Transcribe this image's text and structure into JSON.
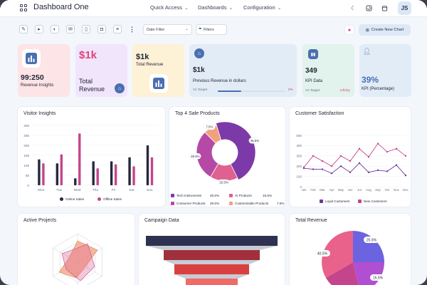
{
  "header": {
    "title": "Dashboard One",
    "nav": [
      {
        "label": "Quick Access"
      },
      {
        "label": "Dashboards"
      },
      {
        "label": "Configuration"
      }
    ],
    "avatar_initials": "JS"
  },
  "toolbar": {
    "date_filter_placeholder": "Date Filter",
    "filters_label": "Filters",
    "create_chart_label": "Create New Chart"
  },
  "kpis": [
    {
      "value": "99:250",
      "label": "Revenue Insights",
      "bg": "#fde4e6"
    },
    {
      "value": "$1k",
      "label": "Total Revenue",
      "bg": "#f1e5fb",
      "accent": "#e0437d"
    },
    {
      "value": "$1k",
      "label": "Total Revenue",
      "bg": "#fdf1d6"
    },
    {
      "value": "$1k",
      "label": "Previous Revenue in dollars",
      "sub": "Vs Target",
      "pct": "0%",
      "progress": 0.35,
      "bg": "#e2ecf7"
    },
    {
      "value": "349",
      "label": "KPI Data",
      "sub": "Vs Target",
      "pct": "Infinity",
      "bg": "#e2f2ec"
    },
    {
      "value": "39%",
      "label": "KPI (Percentage)",
      "bg": "#e2ecf7",
      "accent": "#4a6fb1"
    }
  ],
  "visitor": {
    "title": "Visitor Insights",
    "legend": [
      "Online Sales",
      "Offline Sales"
    ]
  },
  "top4": {
    "title": "Top 4 Sale Products",
    "legend": [
      {
        "name": "Tech Instruments",
        "value": "46.5%",
        "color": "#7c3aa8"
      },
      {
        "name": "AI Products",
        "value": "15.5%",
        "color": "#e0608f"
      },
      {
        "name": "Consumer Products",
        "value": "28.5%",
        "color": "#b44aa5"
      },
      {
        "name": "Customizable Products",
        "value": "7.5%",
        "color": "#f2a07d"
      }
    ]
  },
  "satisfaction": {
    "title": "Customer Satisfaction",
    "legend": [
      "Loyal Customers",
      "New Customers"
    ]
  },
  "active": {
    "title": "Active Projects"
  },
  "campaign": {
    "title": "Campaign Data"
  },
  "revenue": {
    "title": "Total Revenue",
    "labels": [
      "25.5%",
      "40.5%",
      "15.5%"
    ]
  },
  "chart_data": [
    {
      "type": "bar",
      "title": "Visitor Insights",
      "categories": [
        "Mon",
        "Tue",
        "Wed",
        "Thu",
        "Fri",
        "Sat",
        "Sun"
      ],
      "ylim": [
        0,
        30
      ],
      "yticks": [
        "0",
        "5k",
        "10k",
        "15k",
        "20k",
        "25k",
        "30k"
      ],
      "series": [
        {
          "name": "Online Sales",
          "color": "#25283d",
          "values": [
            13,
            11,
            3.5,
            12,
            12,
            14,
            20
          ]
        },
        {
          "name": "Offline Sales",
          "color": "#c4458b",
          "values": [
            11,
            15.5,
            26,
            8.5,
            10.5,
            9.5,
            14
          ]
        }
      ]
    },
    {
      "type": "pie",
      "title": "Top 4 Sale Products",
      "labels": [
        "Tech Instruments",
        "AI Products",
        "Consumer Products",
        "Customizable Products"
      ],
      "values": [
        46.5,
        15.5,
        28.5,
        7.5
      ]
    },
    {
      "type": "line",
      "title": "Customer Satisfaction",
      "categories": [
        "Jan",
        "Feb",
        "Mar",
        "Apr",
        "May",
        "Jun",
        "Jul",
        "Aug",
        "Sep",
        "Oct",
        "Nov",
        "Dec"
      ],
      "ylim": [
        0,
        500
      ],
      "yticks": [
        "0",
        "100",
        "200",
        "300",
        "400",
        "500"
      ],
      "series": [
        {
          "name": "Loyal Customers",
          "color": "#6a3a9b",
          "values": [
            180,
            170,
            170,
            130,
            200,
            140,
            230,
            140,
            160,
            150,
            210,
            110
          ]
        },
        {
          "name": "New Customers",
          "color": "#c4458b",
          "values": [
            190,
            300,
            250,
            200,
            300,
            250,
            370,
            290,
            420,
            340,
            370,
            300
          ]
        }
      ]
    }
  ]
}
